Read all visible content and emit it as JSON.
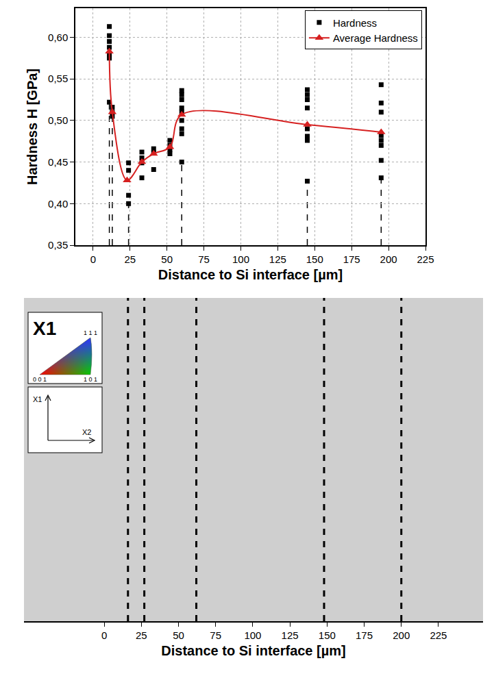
{
  "chart_data": [
    {
      "type": "scatter",
      "xlabel": "Distance to Si interface [µm]",
      "ylabel": "Hardness H [GPa]",
      "xlim": [
        -12,
        225
      ],
      "xticks": [
        0,
        25,
        50,
        75,
        100,
        125,
        150,
        175,
        200,
        225
      ],
      "ylim": [
        0.35,
        0.635
      ],
      "yticks": [
        {
          "value": 0.35,
          "label": "0,35"
        },
        {
          "value": 0.4,
          "label": "0,40"
        },
        {
          "value": 0.45,
          "label": "0,45"
        },
        {
          "value": 0.5,
          "label": "0,50"
        },
        {
          "value": 0.55,
          "label": "0,55"
        },
        {
          "value": 0.6,
          "label": "0,60"
        }
      ],
      "grid": true,
      "legend": "upper right",
      "series": [
        {
          "name": "Hardness",
          "type": "scatter",
          "color": "#000000",
          "marker": "square",
          "x": [
            11,
            11,
            11,
            11,
            11,
            11,
            11,
            13,
            13,
            13,
            24,
            24,
            24,
            24,
            33,
            33,
            33,
            33,
            41,
            41,
            41,
            52,
            52,
            52,
            52,
            60,
            60,
            60,
            60,
            60,
            60,
            60,
            60,
            60,
            145,
            145,
            145,
            145,
            145,
            145,
            145,
            145,
            195,
            195,
            195,
            195,
            195,
            195,
            195,
            195
          ],
          "values": [
            0.613,
            0.602,
            0.595,
            0.588,
            0.58,
            0.575,
            0.522,
            0.516,
            0.51,
            0.505,
            0.449,
            0.44,
            0.41,
            0.4,
            0.462,
            0.455,
            0.449,
            0.431,
            0.466,
            0.461,
            0.441,
            0.476,
            0.47,
            0.465,
            0.46,
            0.536,
            0.531,
            0.525,
            0.515,
            0.51,
            0.5,
            0.49,
            0.484,
            0.45,
            0.537,
            0.531,
            0.525,
            0.515,
            0.49,
            0.481,
            0.476,
            0.427,
            0.543,
            0.521,
            0.51,
            0.482,
            0.476,
            0.47,
            0.452,
            0.431
          ]
        },
        {
          "name": "Average Hardness",
          "type": "line",
          "color": "#d62020",
          "marker": "triangle",
          "line_style": "spline",
          "x": [
            11,
            13,
            23,
            33,
            41,
            52,
            60,
            145,
            195
          ],
          "values": [
            0.583,
            0.51,
            0.428,
            0.45,
            0.46,
            0.468,
            0.507,
            0.495,
            0.486
          ]
        }
      ],
      "dashed_lines": [
        11,
        13,
        24,
        60,
        145,
        195
      ]
    },
    {
      "type": "map",
      "xlabel": "Distance to Si interface [µm]",
      "xlim": [
        -54,
        255
      ],
      "xticks": [
        0,
        25,
        50,
        75,
        100,
        125,
        150,
        175,
        200,
        225
      ],
      "dashed_lines": [
        16,
        27,
        62,
        148,
        200
      ],
      "inset": {
        "title": "X1",
        "ipf_corners": [
          "1 1 1",
          "0 0 1",
          "1 0 1"
        ],
        "axes": [
          "X1",
          "X2"
        ]
      }
    }
  ]
}
